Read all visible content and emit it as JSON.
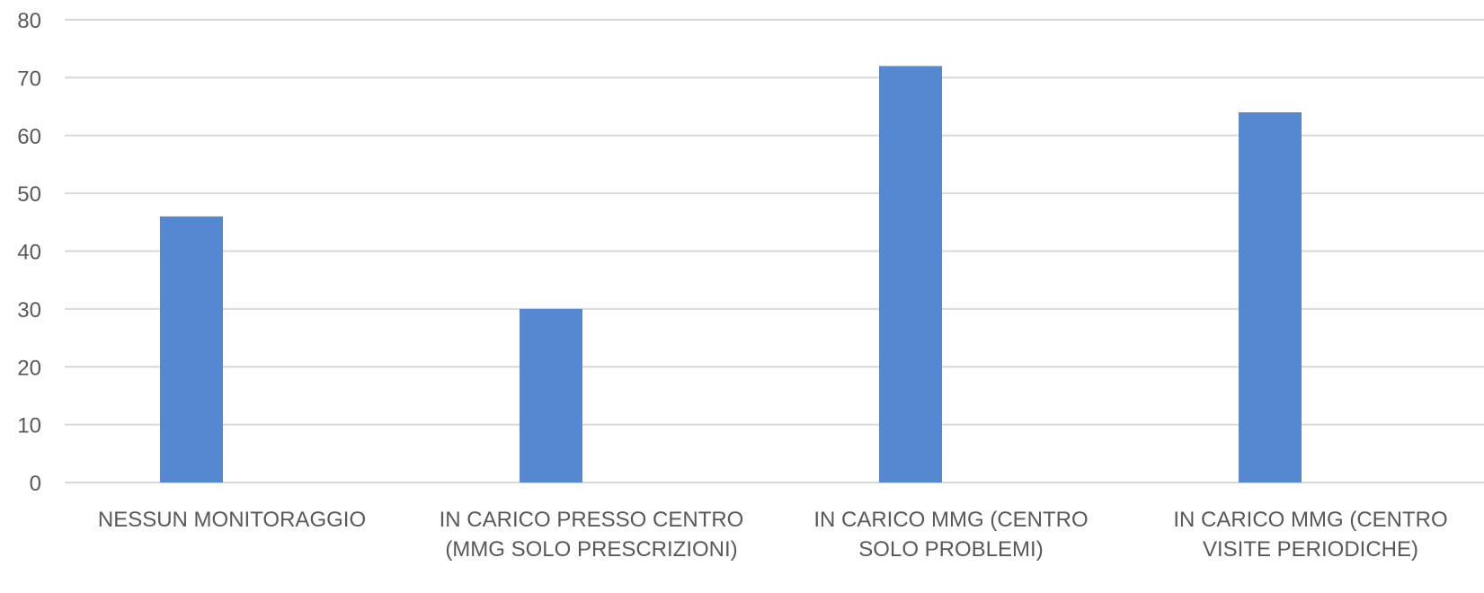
{
  "chart_data": {
    "type": "bar",
    "categories": [
      [
        "NESSUN MONITORAGGIO"
      ],
      [
        "IN CARICO PRESSO CENTRO",
        "(MMG SOLO PRESCRIZIONI)"
      ],
      [
        "IN CARICO MMG (CENTRO",
        "SOLO PROBLEMI)"
      ],
      [
        "IN CARICO MMG (CENTRO",
        "VISITE PERIODICHE)"
      ]
    ],
    "values": [
      46,
      30,
      72,
      64
    ],
    "ylim": [
      0,
      80
    ],
    "yticks": [
      0,
      10,
      20,
      30,
      40,
      50,
      60,
      70,
      80
    ],
    "grid": true,
    "bar_color": "#5588d1",
    "grid_color": "#d9d9d9",
    "text_color": "#595959",
    "title": "",
    "xlabel": "",
    "ylabel": ""
  }
}
